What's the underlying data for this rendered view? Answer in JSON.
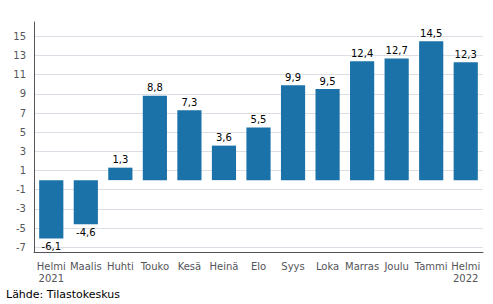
{
  "chart_data": {
    "type": "bar",
    "categories": [
      "Helmi\n2021",
      "Maalis",
      "Huhti",
      "Touko",
      "Kesä",
      "Heinä",
      "Elo",
      "Syys",
      "Loka",
      "Marras",
      "Joulu",
      "Tammi",
      "Helmi\n2022"
    ],
    "values": [
      -6.1,
      -4.6,
      1.3,
      8.8,
      7.3,
      3.6,
      5.5,
      9.9,
      9.5,
      12.4,
      12.7,
      14.5,
      12.3
    ],
    "value_labels": [
      "-6,1",
      "-4,6",
      "1,3",
      "8,8",
      "7,3",
      "3,6",
      "5,5",
      "9,9",
      "9,5",
      "12,4",
      "12,7",
      "14,5",
      "12,3"
    ],
    "color": "#1b72a8",
    "ylim": [
      -7.5,
      16.5
    ],
    "yticks": [
      15,
      13,
      11,
      9,
      7,
      5,
      3,
      1,
      -1,
      -3,
      -5,
      -7
    ],
    "grid": true,
    "data_labels": true,
    "annotations": [
      "Lähde: Tilastokeskus"
    ]
  }
}
